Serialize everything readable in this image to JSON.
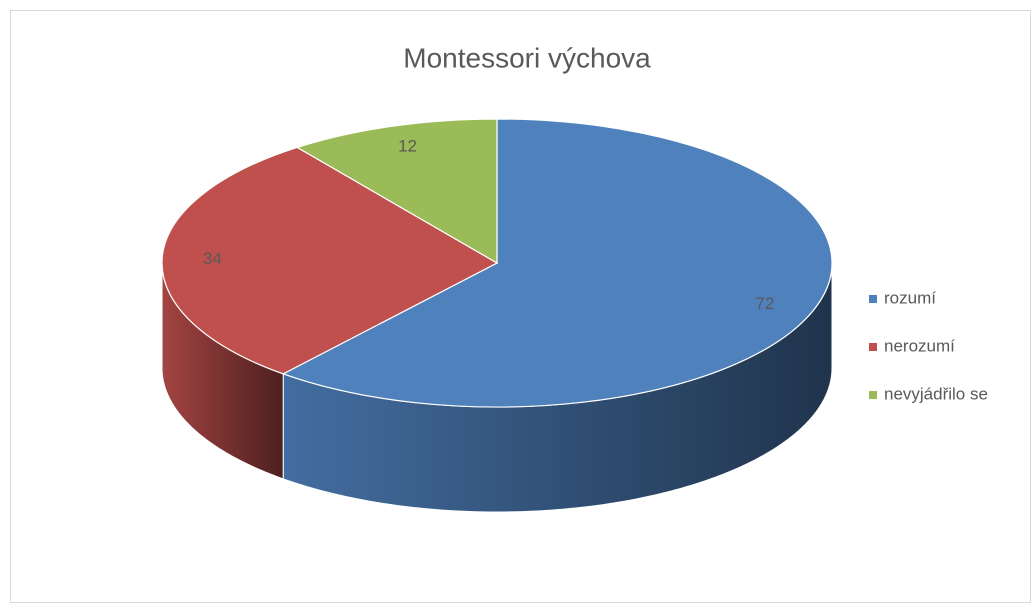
{
  "chart_data": {
    "type": "pie",
    "title": "Montessori výchova",
    "categories": [
      "rozumí",
      "nerozumí",
      "nevyjádřilo se"
    ],
    "values": [
      72,
      34,
      12
    ],
    "colors": [
      "#4f81bd",
      "#c0504d",
      "#9bbb59"
    ],
    "legend": "right"
  }
}
